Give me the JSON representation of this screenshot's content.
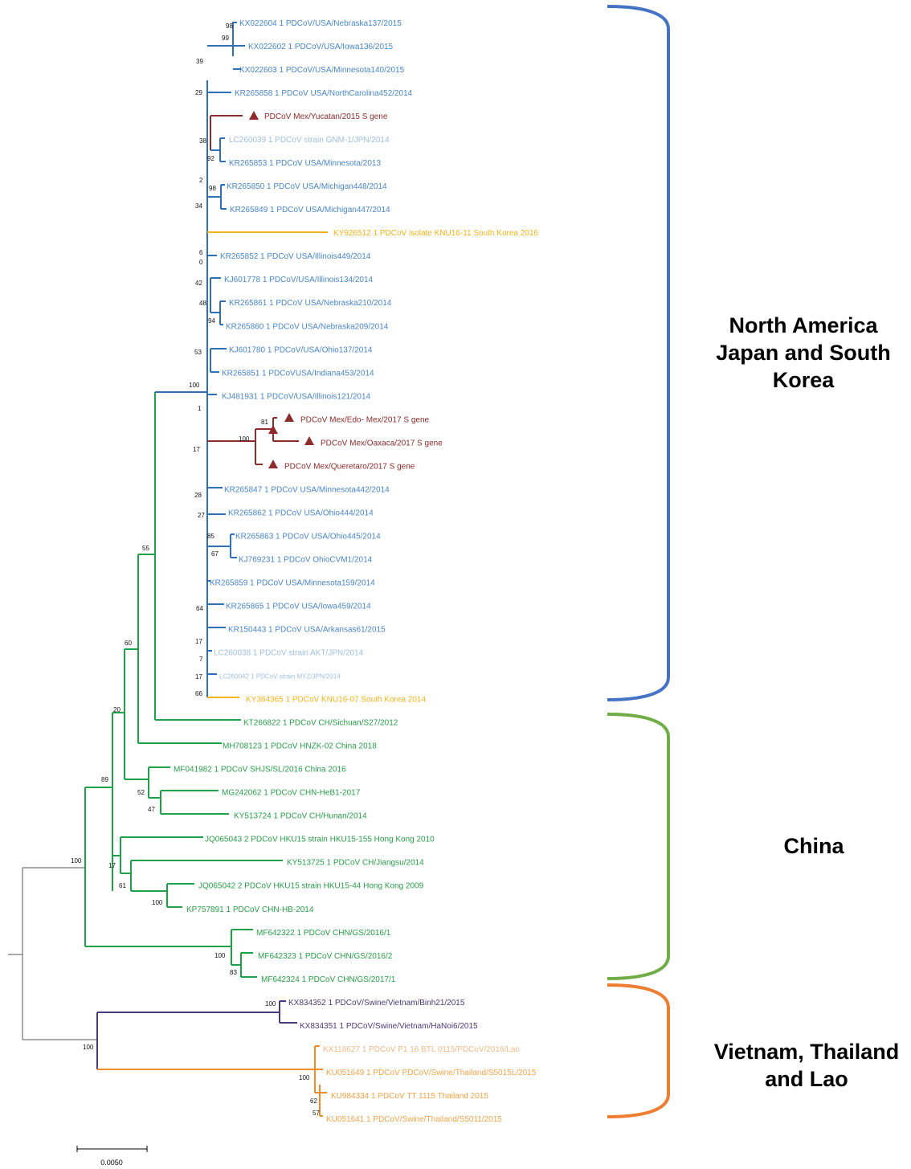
{
  "colors": {
    "north_america": "#2e6fb7",
    "north_america_text": "#4a86c8",
    "japan_text": "#9fc0de",
    "korea": "#f5b31b",
    "mexico": "#8e2b2b",
    "china": "#1fa14a",
    "china_text": "#2a9d48",
    "vietnam": "#4d3a7a",
    "thailand": "#f28c28",
    "thailand_text": "#f3a34b",
    "lao_text": "#f2b98a",
    "root": "#555555",
    "bracket_blue": "#4472c4",
    "bracket_green": "#70ad47",
    "bracket_orange": "#ed7d31"
  },
  "taxa": [
    {
      "id": "t1",
      "label": "KX022604 1 PDCoV/USA/Nebraska137/2015",
      "group": "na"
    },
    {
      "id": "t2",
      "label": "KX022602 1 PDCoV/USA/Iowa136/2015",
      "group": "na"
    },
    {
      "id": "t3",
      "label": "KX022603 1 PDCoV/USA/Minnesota140/2015",
      "group": "na"
    },
    {
      "id": "t4",
      "label": "KR265858 1 PDCoV USA/NorthCarolina452/2014",
      "group": "na"
    },
    {
      "id": "t5",
      "label": "PDCoV Mex/Yucatan/2015 S gene",
      "group": "mex",
      "marker": "triangle"
    },
    {
      "id": "t6",
      "label": "LC260039 1 PDCoV strain GNM-1/JPN/2014",
      "group": "jpn"
    },
    {
      "id": "t7",
      "label": "KR265853 1 PDCoV USA/Minnesota/2013",
      "group": "na"
    },
    {
      "id": "t8",
      "label": "KR265850 1 PDCoV USA/Michigan448/2014",
      "group": "na"
    },
    {
      "id": "t9",
      "label": "KR265849 1 PDCoV USA/Michigan447/2014",
      "group": "na"
    },
    {
      "id": "t10",
      "label": "KY926512 1 PDCoV isolate KNU16-11 South Korea 2016",
      "group": "kor"
    },
    {
      "id": "t11",
      "label": "KR265852 1 PDCoV USA/Illinois449/2014",
      "group": "na"
    },
    {
      "id": "t12",
      "label": "KJ601778 1 PDCoV/USA/Illinois134/2014",
      "group": "na"
    },
    {
      "id": "t13",
      "label": "KR265861 1 PDCoV USA/Nebraska210/2014",
      "group": "na"
    },
    {
      "id": "t14",
      "label": "KR265860 1 PDCoV USA/Nebraska209/2014",
      "group": "na"
    },
    {
      "id": "t15",
      "label": "KJ601780 1 PDCoV/USA/Ohio137/2014",
      "group": "na"
    },
    {
      "id": "t16",
      "label": "KR265851 1 PDCoVUSA/Indiana453/2014",
      "group": "na"
    },
    {
      "id": "t17",
      "label": "KJ481931 1 PDCoV/USA/Illinois121/2014",
      "group": "na"
    },
    {
      "id": "t18",
      "label": "PDCoV Mex/Edo- Mex/2017 S gene",
      "group": "mex",
      "marker": "triangle"
    },
    {
      "id": "t19",
      "label": "PDCoV Mex/Oaxaca/2017 S gene",
      "group": "mex",
      "marker": "triangle"
    },
    {
      "id": "t20",
      "label": "PDCoV Mex/Queretaro/2017 S gene",
      "group": "mex",
      "marker": "triangle"
    },
    {
      "id": "t21",
      "label": "KR265847 1 PDCoV USA/Minnesota442/2014",
      "group": "na"
    },
    {
      "id": "t22",
      "label": "KR265862 1 PDCoV USA/Ohio444/2014",
      "group": "na"
    },
    {
      "id": "t23",
      "label": "KR265863 1 PDCoV USA/Ohio445/2014",
      "group": "na"
    },
    {
      "id": "t24",
      "label": "KJ769231 1 PDCoV OhioCVM1/2014",
      "group": "na"
    },
    {
      "id": "t25",
      "label": "KR265859 1 PDCoV USA/Minnesota159/2014",
      "group": "na"
    },
    {
      "id": "t26",
      "label": "KR265865 1 PDCoV USA/Iowa459/2014",
      "group": "na"
    },
    {
      "id": "t27",
      "label": "KR150443 1 PDCoV USA/Arkansas61/2015",
      "group": "na"
    },
    {
      "id": "t28",
      "label": "LC260038 1 PDCoV strain AKT/JPN/2014",
      "group": "jpn"
    },
    {
      "id": "t29",
      "label": "LC260042 1 PDCoV strain MYZ/JPN/2014",
      "group": "jpn",
      "small": true
    },
    {
      "id": "t30",
      "label": "KY364365 1 PDCoV KNU16-07 South Korea 2014",
      "group": "kor"
    },
    {
      "id": "t31",
      "label": "KT266822 1 PDCoV CH/Sichuan/S27/2012",
      "group": "cn"
    },
    {
      "id": "t32",
      "label": "MH708123 1 PDCoV HNZK-02 China 2018",
      "group": "cn"
    },
    {
      "id": "t33",
      "label": "MF041982 1 PDCoV SHJS/SL/2016 China 2016",
      "group": "cn"
    },
    {
      "id": "t34",
      "label": "MG242062 1 PDCoV CHN-HeB1-2017",
      "group": "cn"
    },
    {
      "id": "t35",
      "label": "KY513724 1 PDCoV CH/Hunan/2014",
      "group": "cn"
    },
    {
      "id": "t36",
      "label": "JQ065043 2 PDCoV HKU15 strain HKU15-155 Hong Kong 2010",
      "group": "cn"
    },
    {
      "id": "t37",
      "label": "KY513725 1 PDCoV CH/Jiangsu/2014",
      "group": "cn"
    },
    {
      "id": "t38",
      "label": "JQ065042 2 PDCoV HKU15 strain HKU15-44 Hong Kong 2009",
      "group": "cn"
    },
    {
      "id": "t39",
      "label": "KP757891 1 PDCoV CHN-HB-2014",
      "group": "cn"
    },
    {
      "id": "t40",
      "label": "MF642322 1 PDCoV CHN/GS/2016/1",
      "group": "cn"
    },
    {
      "id": "t41",
      "label": "MF642323 1 PDCoV CHN/GS/2016/2",
      "group": "cn"
    },
    {
      "id": "t42",
      "label": "MF642324 1 PDCoV CHN/GS/2017/1",
      "group": "cn"
    },
    {
      "id": "t43",
      "label": "KX834352 1 PDCoV/Swine/Vietnam/Binh21/2015",
      "group": "vn"
    },
    {
      "id": "t44",
      "label": "KX834351 1 PDCoV/Swine/Vietnam/HaNoi6/2015",
      "group": "vn"
    },
    {
      "id": "t45",
      "label": "KX118627 1 PDCoV P1 16 BTL 0115/PDCoV/2016/Lao",
      "group": "lao"
    },
    {
      "id": "t46",
      "label": "KU051649 1 PDCoV PDCoV/Swine/Thailand/S5015L/2015",
      "group": "th"
    },
    {
      "id": "t47",
      "label": "KU984334 1 PDCoV TT 1115 Thailand 2015",
      "group": "th"
    },
    {
      "id": "t48",
      "label": "KU051641 1  PDCoV/Swine/Thailand/S5011/2015",
      "group": "th"
    }
  ],
  "bootstrap": [
    "98",
    "99",
    "39",
    "29",
    "38",
    "92",
    "2",
    "98",
    "34",
    "6",
    "0",
    "42",
    "48",
    "94",
    "53",
    "100",
    "1",
    "81",
    "100",
    "17",
    "28",
    "27",
    "85",
    "67",
    "64",
    "17",
    "7",
    "17",
    "66",
    "55",
    "60",
    "20",
    "89",
    "52",
    "47",
    "17",
    "61",
    "100",
    "100",
    "100",
    "83",
    "100",
    "100",
    "100",
    "62",
    "57"
  ],
  "groups": [
    {
      "id": "grp-na",
      "lines": [
        "North America",
        "Japan and South",
        "Korea"
      ],
      "color": "#4472c4"
    },
    {
      "id": "grp-cn",
      "lines": [
        "China"
      ],
      "color": "#70ad47"
    },
    {
      "id": "grp-vt",
      "lines": [
        "Vietnam, Thailand",
        "and Lao"
      ],
      "color": "#ed7d31"
    }
  ],
  "scale_bar": {
    "label": "0.0050"
  }
}
